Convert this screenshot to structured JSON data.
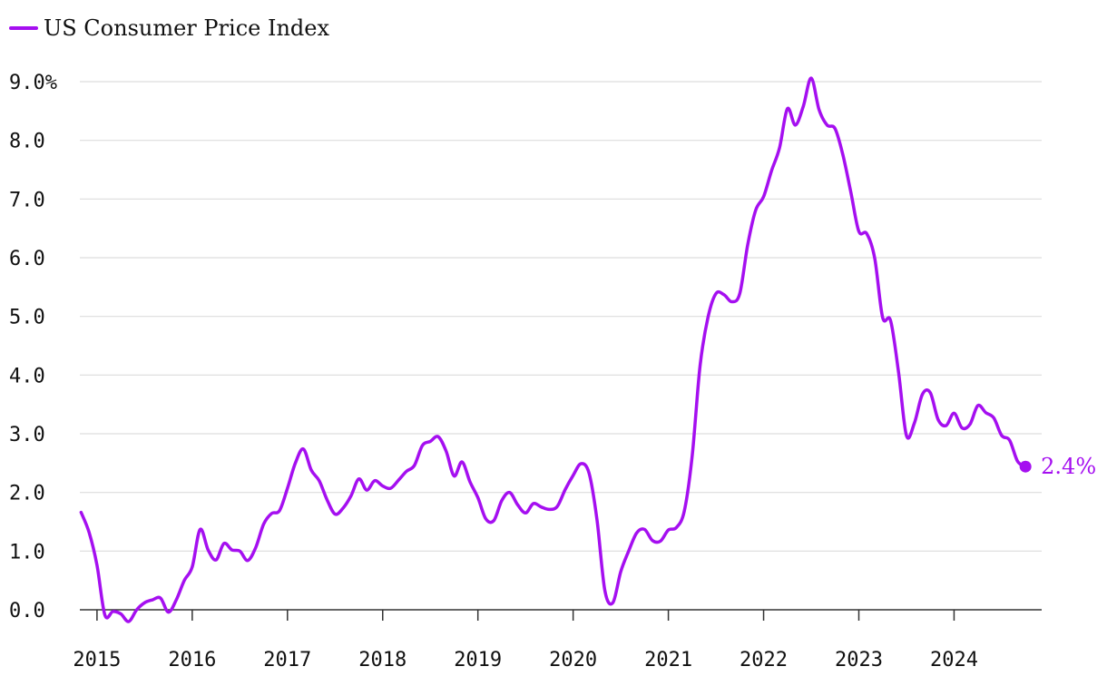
{
  "chart_data": {
    "type": "line",
    "title": "",
    "xlabel": "",
    "ylabel": "",
    "legend": [
      {
        "name": "US Consumer Price Index",
        "color": "#a50ff0"
      }
    ],
    "x_ticks": [
      "2015",
      "2016",
      "2017",
      "2018",
      "2019",
      "2020",
      "2021",
      "2022",
      "2023",
      "2024"
    ],
    "y_ticks": [
      "0.0",
      "1.0",
      "2.0",
      "3.0",
      "4.0",
      "5.0",
      "6.0",
      "7.0",
      "8.0",
      "9.0%"
    ],
    "y_tick_values": [
      0,
      1,
      2,
      3,
      4,
      5,
      6,
      7,
      8,
      9
    ],
    "ylim": [
      0,
      9
    ],
    "xlim": [
      2014.82,
      2024.92
    ],
    "grid": true,
    "end_label": "2.4%",
    "series": [
      {
        "name": "US Consumer Price Index",
        "color": "#a50ff0",
        "x": [
          2014.833,
          2014.917,
          2015.0,
          2015.083,
          2015.167,
          2015.25,
          2015.333,
          2015.417,
          2015.5,
          2015.583,
          2015.667,
          2015.75,
          2015.833,
          2015.917,
          2016.0,
          2016.083,
          2016.167,
          2016.25,
          2016.333,
          2016.417,
          2016.5,
          2016.583,
          2016.667,
          2016.75,
          2016.833,
          2016.917,
          2017.0,
          2017.083,
          2017.167,
          2017.25,
          2017.333,
          2017.417,
          2017.5,
          2017.583,
          2017.667,
          2017.75,
          2017.833,
          2017.917,
          2018.0,
          2018.083,
          2018.167,
          2018.25,
          2018.333,
          2018.417,
          2018.5,
          2018.583,
          2018.667,
          2018.75,
          2018.833,
          2018.917,
          2019.0,
          2019.083,
          2019.167,
          2019.25,
          2019.333,
          2019.417,
          2019.5,
          2019.583,
          2019.667,
          2019.75,
          2019.833,
          2019.917,
          2020.0,
          2020.083,
          2020.167,
          2020.25,
          2020.333,
          2020.417,
          2020.5,
          2020.583,
          2020.667,
          2020.75,
          2020.833,
          2020.917,
          2021.0,
          2021.083,
          2021.167,
          2021.25,
          2021.333,
          2021.417,
          2021.5,
          2021.583,
          2021.667,
          2021.75,
          2021.833,
          2021.917,
          2022.0,
          2022.083,
          2022.167,
          2022.25,
          2022.333,
          2022.417,
          2022.5,
          2022.583,
          2022.667,
          2022.75,
          2022.833,
          2022.917,
          2023.0,
          2023.083,
          2023.167,
          2023.25,
          2023.333,
          2023.417,
          2023.5,
          2023.583,
          2023.667,
          2023.75,
          2023.833,
          2023.917,
          2024.0,
          2024.083,
          2024.167,
          2024.25,
          2024.333,
          2024.417,
          2024.5,
          2024.583,
          2024.667,
          2024.75
        ],
        "values": [
          1.66,
          1.32,
          0.76,
          -0.09,
          -0.03,
          -0.07,
          -0.2,
          0.0,
          0.12,
          0.17,
          0.2,
          -0.04,
          0.17,
          0.5,
          0.73,
          1.37,
          1.02,
          0.85,
          1.13,
          1.02,
          1.0,
          0.84,
          1.06,
          1.46,
          1.64,
          1.69,
          2.07,
          2.5,
          2.74,
          2.38,
          2.2,
          1.87,
          1.63,
          1.73,
          1.94,
          2.23,
          2.04,
          2.2,
          2.11,
          2.07,
          2.21,
          2.36,
          2.46,
          2.8,
          2.87,
          2.95,
          2.7,
          2.28,
          2.52,
          2.18,
          1.91,
          1.55,
          1.52,
          1.86,
          2.0,
          1.79,
          1.65,
          1.81,
          1.75,
          1.71,
          1.76,
          2.05,
          2.29,
          2.49,
          2.33,
          1.54,
          0.33,
          0.12,
          0.65,
          1.0,
          1.31,
          1.37,
          1.18,
          1.17,
          1.36,
          1.4,
          1.68,
          2.62,
          4.16,
          4.99,
          5.39,
          5.37,
          5.25,
          5.39,
          6.22,
          6.81,
          7.04,
          7.48,
          7.87,
          8.54,
          8.26,
          8.58,
          9.06,
          8.52,
          8.26,
          8.2,
          7.75,
          7.11,
          6.45,
          6.41,
          5.99,
          4.98,
          4.93,
          4.05,
          2.97,
          3.18,
          3.67,
          3.7,
          3.24,
          3.14,
          3.35,
          3.1,
          3.16,
          3.48,
          3.36,
          3.27,
          2.97,
          2.89,
          2.53,
          2.44
        ]
      }
    ]
  }
}
